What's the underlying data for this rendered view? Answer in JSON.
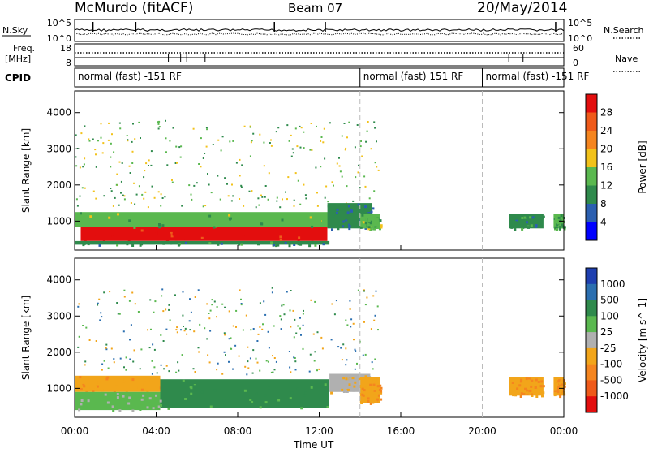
{
  "header": {
    "station": "McMurdo (fitACF)",
    "beam": "Beam 07",
    "date": "20/May/2014"
  },
  "noise_panel": {
    "left_label": "N.Sky",
    "right_label": "N.Search",
    "left_ticks": [
      "10^5",
      "10^0"
    ],
    "right_ticks": [
      "10^5",
      "10^0"
    ]
  },
  "freq_panel": {
    "left_label_1": "Freq.",
    "left_label_2": "[MHz]",
    "right_label": "Nave",
    "left_ticks": [
      "18",
      "8"
    ],
    "right_ticks": [
      "60",
      "0"
    ]
  },
  "cpid_panel": {
    "label": "CPID",
    "segments": [
      {
        "start_hour": 0,
        "end_hour": 14,
        "label": "normal (fast) -151 RF"
      },
      {
        "start_hour": 14,
        "end_hour": 20,
        "label": "normal (fast) 151 RF"
      },
      {
        "start_hour": 20,
        "end_hour": 24,
        "label": "normal (fast) -151 RF"
      }
    ]
  },
  "colors": {
    "power_scale": [
      "#0000ff",
      "#2b5fb0",
      "#2f8a4c",
      "#5ab84f",
      "#f2c21a",
      "#f5851f",
      "#ef5a1a",
      "#e30e0e"
    ],
    "velocity_scale": [
      "#1e3fb0",
      "#2b6fb0",
      "#2f8a4c",
      "#5ab84f",
      "#b0b0b0",
      "#f2a51a",
      "#f5851f",
      "#ef5a1a",
      "#e30e0e"
    ],
    "dashed_line": "#bbbbbb"
  },
  "chart_data": [
    {
      "type": "heatmap",
      "name": "power",
      "ylabel": "Slant Range [km]",
      "ylim": [
        200,
        4600
      ],
      "xlim": [
        0,
        24
      ],
      "yticks": [
        1000,
        2000,
        3000,
        4000
      ],
      "colorbar": {
        "label": "Power [dB]",
        "range": [
          0,
          32
        ],
        "tick_labels": [
          "28",
          "24",
          "20",
          "16",
          "12",
          "8",
          "4"
        ]
      },
      "features": [
        {
          "t0": 0.3,
          "t1": 12.4,
          "r0": 450,
          "r1": 850,
          "value": 30
        },
        {
          "t0": 0.0,
          "t1": 12.5,
          "r0": 850,
          "r1": 1250,
          "value": 14
        },
        {
          "t0": 0.0,
          "t1": 12.5,
          "r0": 350,
          "r1": 450,
          "value": 10
        },
        {
          "t0": 12.4,
          "t1": 14.6,
          "r0": 800,
          "r1": 1500,
          "value": 8
        },
        {
          "t0": 14.0,
          "t1": 15.0,
          "r0": 800,
          "r1": 1200,
          "value": 14
        },
        {
          "t0": 21.3,
          "t1": 23.0,
          "r0": 800,
          "r1": 1200,
          "value": 10
        },
        {
          "t0": 23.5,
          "t1": 24.0,
          "r0": 800,
          "r1": 1200,
          "value": 12
        }
      ]
    },
    {
      "type": "heatmap",
      "name": "velocity",
      "ylabel": "Slant Range [km]",
      "xlabel": "Time UT",
      "ylim": [
        200,
        4600
      ],
      "xlim": [
        0,
        24
      ],
      "yticks": [
        1000,
        2000,
        3000,
        4000
      ],
      "xticks": [
        "00:00",
        "04:00",
        "08:00",
        "12:00",
        "16:00",
        "20:00",
        "00:00"
      ],
      "colorbar": {
        "label": "Velocity [m s^-1]",
        "tick_labels": [
          "1000",
          "500",
          "100",
          "25",
          "-25",
          "-100",
          "-500",
          "-1000"
        ]
      },
      "features": [
        {
          "t0": 0.0,
          "t1": 4.2,
          "r0": 900,
          "r1": 1350,
          "value": -100
        },
        {
          "t0": 4.2,
          "t1": 12.5,
          "r0": 450,
          "r1": 1250,
          "value": 100
        },
        {
          "t0": 0.0,
          "t1": 4.2,
          "r0": 400,
          "r1": 900,
          "value": 25
        },
        {
          "t0": 12.5,
          "t1": 14.5,
          "r0": 900,
          "r1": 1400,
          "value": -25
        },
        {
          "t0": 14.0,
          "t1": 15.0,
          "r0": 600,
          "r1": 1300,
          "value": -100
        },
        {
          "t0": 21.3,
          "t1": 23.0,
          "r0": 800,
          "r1": 1300,
          "value": -100
        },
        {
          "t0": 23.5,
          "t1": 24.0,
          "r0": 800,
          "r1": 1300,
          "value": -100
        }
      ]
    }
  ]
}
